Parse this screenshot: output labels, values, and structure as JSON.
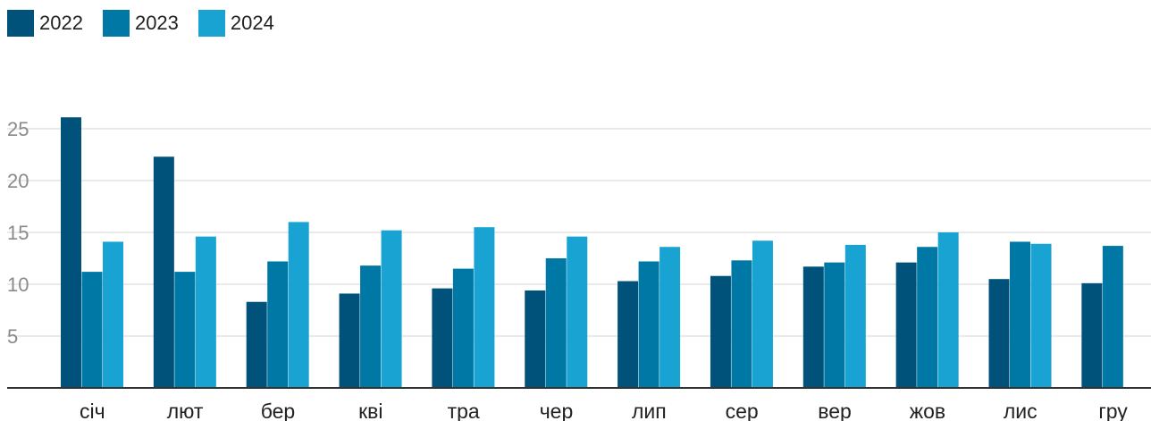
{
  "chart_data": {
    "type": "bar",
    "categories": [
      "січ",
      "лют",
      "бер",
      "кві",
      "тра",
      "чер",
      "лип",
      "сер",
      "вер",
      "жов",
      "лис",
      "гру"
    ],
    "series": [
      {
        "name": "2022",
        "color": "#00527a",
        "values": [
          26.1,
          22.3,
          8.3,
          9.1,
          9.6,
          9.4,
          10.3,
          10.8,
          11.7,
          12.1,
          10.5,
          10.1
        ]
      },
      {
        "name": "2023",
        "color": "#0078a6",
        "values": [
          11.2,
          11.2,
          12.2,
          11.8,
          11.5,
          12.5,
          12.2,
          12.3,
          12.1,
          13.6,
          14.1,
          13.7
        ]
      },
      {
        "name": "2024",
        "color": "#19a3d3",
        "values": [
          14.1,
          14.6,
          16.0,
          15.2,
          15.5,
          14.6,
          13.6,
          14.2,
          13.8,
          15.0,
          13.9,
          null
        ]
      }
    ],
    "yticks": [
      5,
      10,
      15,
      20,
      25
    ],
    "ylim": [
      0,
      27.2
    ],
    "grid": true,
    "legend": "top-left"
  }
}
